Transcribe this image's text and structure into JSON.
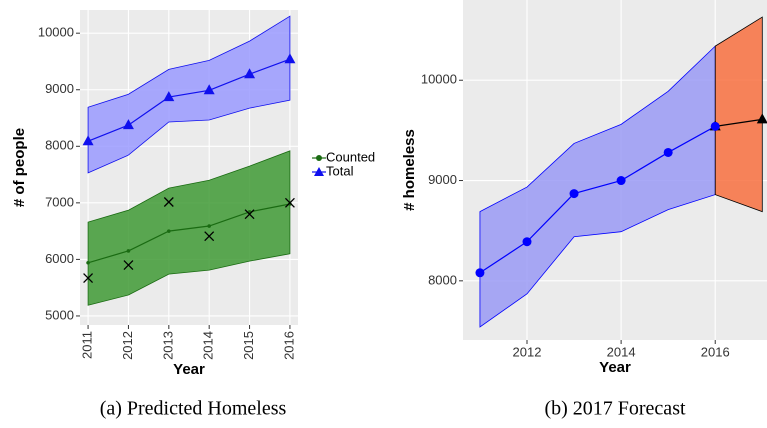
{
  "chart_data": [
    {
      "type": "line",
      "caption": "(a) Predicted Homeless",
      "xlabel": "Year",
      "ylabel": "# of people",
      "xlim": [
        2010.8,
        2016.2
      ],
      "xticks": [
        2011,
        2012,
        2013,
        2014,
        2015,
        2016
      ],
      "ylim": [
        4840,
        10410
      ],
      "yticks": [
        5000,
        6000,
        7000,
        8000,
        9000,
        10000
      ],
      "grid": true,
      "legend": "right",
      "series": [
        {
          "name": "Counted",
          "color": "#1a6b12",
          "band_color": "#3f9a35",
          "marker": "dot",
          "x": [
            2011,
            2012,
            2013,
            2014,
            2015,
            2016
          ],
          "values": [
            5940,
            6150,
            6500,
            6590,
            6840,
            6980
          ],
          "lower": [
            5190,
            5370,
            5740,
            5810,
            5970,
            6100
          ],
          "upper": [
            6660,
            6870,
            7260,
            7400,
            7650,
            7920
          ]
        },
        {
          "name": "Total",
          "color": "#1010ee",
          "band_color": "#9a9aff",
          "marker": "triangle",
          "x": [
            2011,
            2012,
            2013,
            2014,
            2015,
            2016
          ],
          "values": [
            8090,
            8375,
            8870,
            8990,
            9275,
            9540
          ],
          "lower": [
            7530,
            7845,
            8430,
            8465,
            8675,
            8815
          ],
          "upper": [
            8690,
            8920,
            9360,
            9520,
            9860,
            10300
          ]
        }
      ],
      "observed": {
        "marker": "x",
        "color": "#000000",
        "x": [
          2011,
          2012,
          2013,
          2014,
          2015,
          2016
        ],
        "values": [
          5670,
          5900,
          7015,
          6410,
          6800,
          7000
        ]
      }
    },
    {
      "type": "line",
      "caption": "(b) 2017 Forecast",
      "xlabel": "Year",
      "ylabel": "# homeless",
      "xlim": [
        2010.64,
        2017.1
      ],
      "xticks": [
        2012,
        2014,
        2016
      ],
      "ylim": [
        7410,
        10800
      ],
      "yticks": [
        8000,
        9000,
        10000
      ],
      "grid": true,
      "series": [
        {
          "color": "#0000ff",
          "band_color": "#9a9af5",
          "marker": "circle",
          "x": [
            2011,
            2012,
            2013,
            2014,
            2015,
            2016
          ],
          "values": [
            8080,
            8390,
            8870,
            9000,
            9280,
            9540
          ],
          "lower": [
            7540,
            7870,
            8440,
            8490,
            8710,
            8860
          ],
          "upper": [
            8690,
            8935,
            9370,
            9560,
            9890,
            10340
          ]
        },
        {
          "color": "#000000",
          "band_color": "#f8703f",
          "marker": "triangle",
          "x": [
            2016,
            2017
          ],
          "values": [
            9540,
            9610
          ],
          "lower": [
            8860,
            8690
          ],
          "upper": [
            10340,
            10630
          ]
        }
      ]
    }
  ]
}
